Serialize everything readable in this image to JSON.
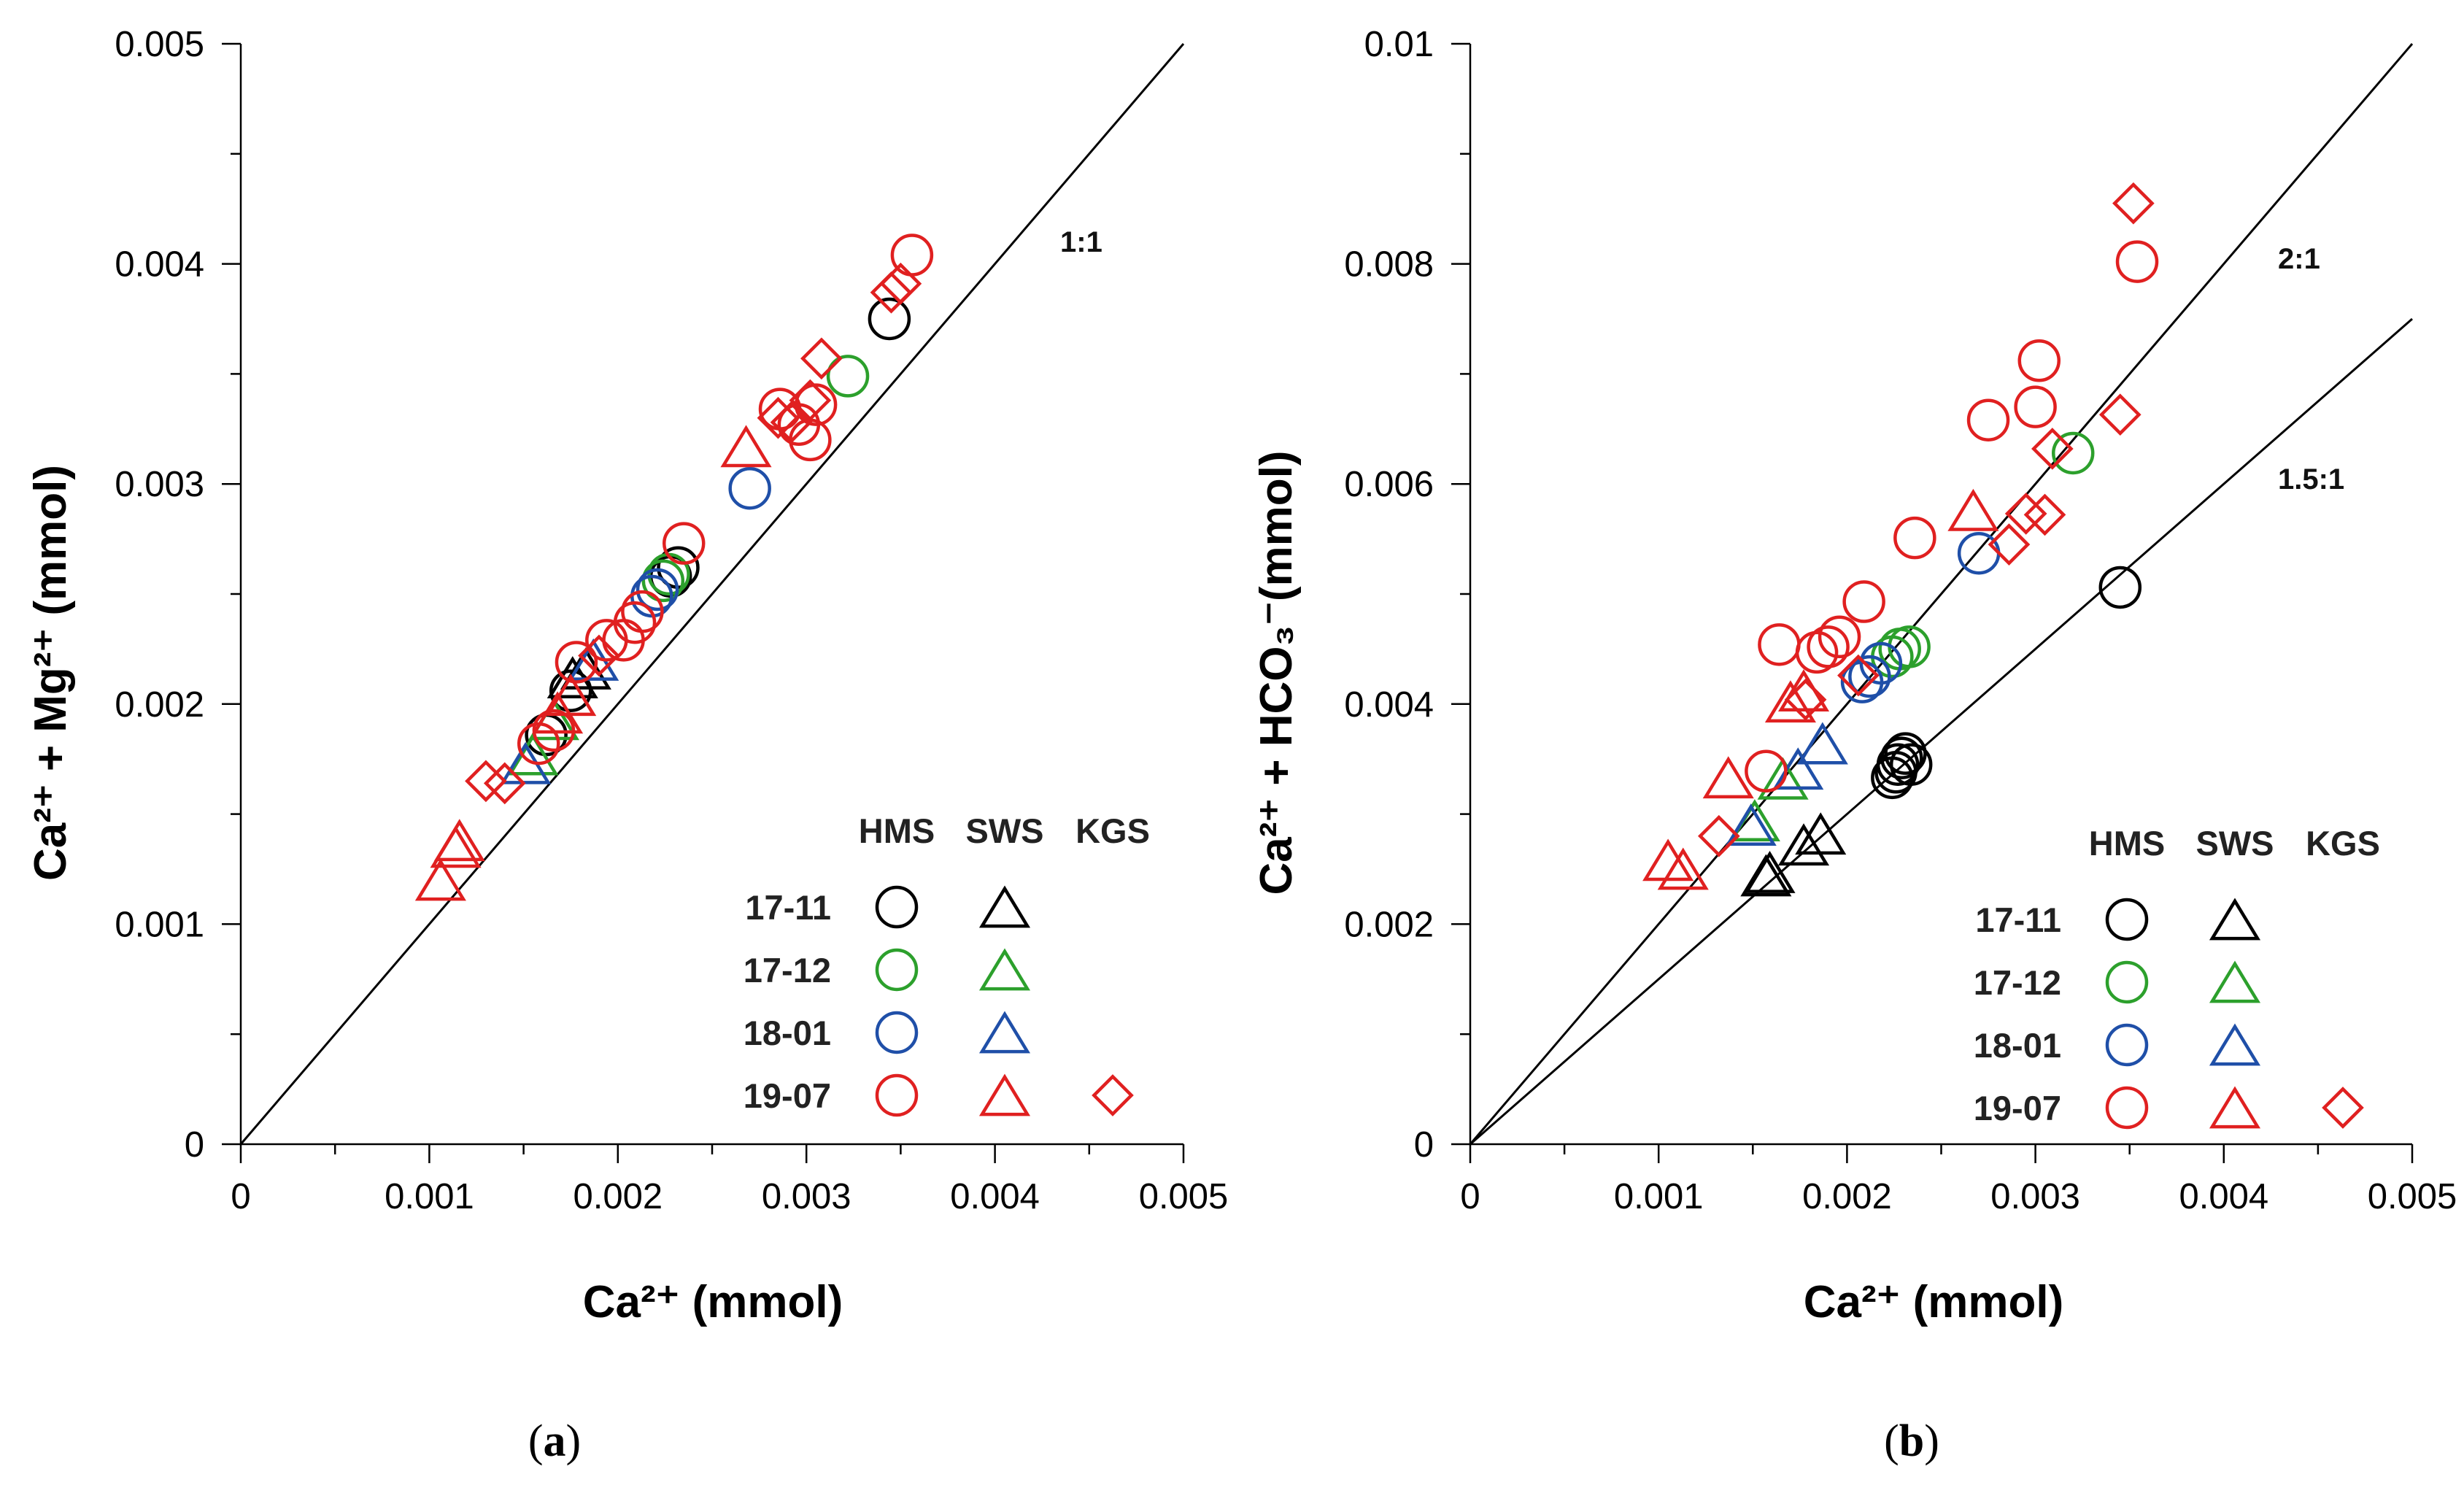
{
  "panels": {
    "a": {
      "label_open": "(",
      "label_letter": "a",
      "label_close": ")"
    },
    "b": {
      "label_open": "(",
      "label_letter": "b",
      "label_close": ")"
    }
  },
  "legend": {
    "headers": [
      "HMS",
      "SWS",
      "KGS"
    ],
    "rows": [
      "17-11",
      "17-12",
      "18-01",
      "19-07"
    ]
  },
  "chart_data": [
    {
      "type": "scatter",
      "panel": "a",
      "title": "",
      "xlabel": "Ca²⁺ (mmol)",
      "ylabel": "Ca²⁺ + Mg²⁺ (mmol)",
      "xlim": [
        0,
        0.005
      ],
      "ylim": [
        0,
        0.005
      ],
      "xticks": [
        "0",
        "0.001",
        "0.002",
        "0.003",
        "0.004",
        "0.005"
      ],
      "yticks": [
        "0",
        "0.001",
        "0.002",
        "0.003",
        "0.004",
        "0.005"
      ],
      "reference_lines": [
        {
          "label": "1:1",
          "slope": 1
        }
      ],
      "legend_position": "bottom-right",
      "grid": false,
      "series": [
        {
          "name": "17-11",
          "site": "HMS",
          "marker": "circle",
          "color": "#000000",
          "points": [
            [
              0.00162,
              0.00186
            ],
            [
              0.00175,
              0.00206
            ],
            [
              0.00228,
              0.00258
            ],
            [
              0.00232,
              0.00262
            ],
            [
              0.00344,
              0.00375
            ]
          ]
        },
        {
          "name": "17-11",
          "site": "SWS",
          "marker": "triangle",
          "color": "#000000",
          "points": [
            [
              0.00176,
              0.00211
            ],
            [
              0.00183,
              0.00215
            ]
          ]
        },
        {
          "name": "17-12",
          "site": "HMS",
          "marker": "circle",
          "color": "#2ca02c",
          "points": [
            [
              0.00224,
              0.00256
            ],
            [
              0.00227,
              0.00259
            ],
            [
              0.00322,
              0.00349
            ]
          ]
        },
        {
          "name": "17-12",
          "site": "SWS",
          "marker": "triangle",
          "color": "#2ca02c",
          "points": [
            [
              0.00155,
              0.00176
            ],
            [
              0.00166,
              0.00192
            ]
          ]
        },
        {
          "name": "18-01",
          "site": "HMS",
          "marker": "circle",
          "color": "#1f4fa8",
          "points": [
            [
              0.00218,
              0.00249
            ],
            [
              0.00221,
              0.00252
            ],
            [
              0.0027,
              0.00298
            ]
          ]
        },
        {
          "name": "18-01",
          "site": "SWS",
          "marker": "triangle",
          "color": "#1f4fa8",
          "points": [
            [
              0.00151,
              0.00172
            ],
            [
              0.00187,
              0.00219
            ]
          ]
        },
        {
          "name": "19-07",
          "site": "HMS",
          "marker": "circle",
          "color": "#e02020",
          "points": [
            [
              0.00158,
              0.00182
            ],
            [
              0.00166,
              0.00188
            ],
            [
              0.00178,
              0.00219
            ],
            [
              0.00194,
              0.00229
            ],
            [
              0.00203,
              0.00229
            ],
            [
              0.00209,
              0.00237
            ],
            [
              0.00213,
              0.00242
            ],
            [
              0.00235,
              0.00273
            ],
            [
              0.00286,
              0.00334
            ],
            [
              0.00296,
              0.00327
            ],
            [
              0.00302,
              0.0032
            ],
            [
              0.00305,
              0.00336
            ],
            [
              0.00356,
              0.00404
            ]
          ]
        },
        {
          "name": "19-07",
          "site": "SWS",
          "marker": "triangle",
          "color": "#e02020",
          "points": [
            [
              0.00106,
              0.00119
            ],
            [
              0.00114,
              0.00134
            ],
            [
              0.00116,
              0.00137
            ],
            [
              0.00168,
              0.00195
            ],
            [
              0.00175,
              0.00203
            ],
            [
              0.00268,
              0.00316
            ]
          ]
        },
        {
          "name": "19-07",
          "site": "KGS",
          "marker": "diamond",
          "color": "#e02020",
          "points": [
            [
              0.0013,
              0.00165
            ],
            [
              0.0014,
              0.00164
            ],
            [
              0.0019,
              0.00222
            ],
            [
              0.00285,
              0.0033
            ],
            [
              0.00292,
              0.00328
            ],
            [
              0.00302,
              0.00338
            ],
            [
              0.00308,
              0.00357
            ],
            [
              0.00345,
              0.00387
            ],
            [
              0.0035,
              0.00391
            ]
          ]
        }
      ]
    },
    {
      "type": "scatter",
      "panel": "b",
      "title": "",
      "xlabel": "Ca²⁺ (mmol)",
      "ylabel": "Ca²⁺ + HCO₃⁻(mmol)",
      "xlim": [
        0,
        0.005
      ],
      "ylim": [
        0,
        0.01
      ],
      "xticks": [
        "0",
        "0.001",
        "0.002",
        "0.003",
        "0.004",
        "0.005"
      ],
      "yticks": [
        "0",
        "0.002",
        "0.004",
        "0.006",
        "0.008",
        "0.01"
      ],
      "reference_lines": [
        {
          "label": "2:1",
          "slope": 2
        },
        {
          "label": "1.5:1",
          "slope": 1.5
        }
      ],
      "legend_position": "bottom-right",
      "grid": false,
      "series": [
        {
          "name": "17-11",
          "site": "HMS",
          "marker": "circle",
          "color": "#000000",
          "points": [
            [
              0.00224,
              0.00333
            ],
            [
              0.00226,
              0.00338
            ],
            [
              0.00227,
              0.00345
            ],
            [
              0.00229,
              0.00351
            ],
            [
              0.00231,
              0.00355
            ],
            [
              0.00234,
              0.00345
            ],
            [
              0.00345,
              0.00506
            ]
          ]
        },
        {
          "name": "17-11",
          "site": "SWS",
          "marker": "triangle",
          "color": "#000000",
          "points": [
            [
              0.00157,
              0.00242
            ],
            [
              0.00159,
              0.00245
            ],
            [
              0.00177,
              0.0027
            ],
            [
              0.00186,
              0.0028
            ]
          ]
        },
        {
          "name": "17-12",
          "site": "HMS",
          "marker": "circle",
          "color": "#2ca02c",
          "points": [
            [
              0.00224,
              0.00443
            ],
            [
              0.00228,
              0.0045
            ],
            [
              0.00233,
              0.00452
            ],
            [
              0.0032,
              0.00628
            ]
          ]
        },
        {
          "name": "17-12",
          "site": "SWS",
          "marker": "triangle",
          "color": "#2ca02c",
          "points": [
            [
              0.00151,
              0.00292
            ],
            [
              0.00166,
              0.0033
            ]
          ]
        },
        {
          "name": "18-01",
          "site": "HMS",
          "marker": "circle",
          "color": "#1f4fa8",
          "points": [
            [
              0.00208,
              0.0042
            ],
            [
              0.00212,
              0.00425
            ],
            [
              0.00218,
              0.00437
            ],
            [
              0.0027,
              0.00537
            ]
          ]
        },
        {
          "name": "18-01",
          "site": "SWS",
          "marker": "triangle",
          "color": "#1f4fa8",
          "points": [
            [
              0.00149,
              0.00288
            ],
            [
              0.00174,
              0.00339
            ],
            [
              0.00187,
              0.00362
            ]
          ]
        },
        {
          "name": "19-07",
          "site": "HMS",
          "marker": "circle",
          "color": "#e02020",
          "points": [
            [
              0.00157,
              0.00339
            ],
            [
              0.00164,
              0.00454
            ],
            [
              0.00184,
              0.00447
            ],
            [
              0.0019,
              0.00452
            ],
            [
              0.00196,
              0.00461
            ],
            [
              0.00209,
              0.00493
            ],
            [
              0.00236,
              0.00551
            ],
            [
              0.00275,
              0.00658
            ],
            [
              0.003,
              0.0067
            ],
            [
              0.00302,
              0.00712
            ],
            [
              0.00354,
              0.00802
            ]
          ]
        },
        {
          "name": "19-07",
          "site": "SWS",
          "marker": "triangle",
          "color": "#e02020",
          "points": [
            [
              0.00105,
              0.00256
            ],
            [
              0.00113,
              0.00248
            ],
            [
              0.00137,
              0.00331
            ],
            [
              0.0017,
              0.004
            ],
            [
              0.00177,
              0.0041
            ],
            [
              0.00267,
              0.00574
            ]
          ]
        },
        {
          "name": "19-07",
          "site": "KGS",
          "marker": "diamond",
          "color": "#e02020",
          "points": [
            [
              0.00132,
              0.0028
            ],
            [
              0.00178,
              0.00404
            ],
            [
              0.00206,
              0.00426
            ],
            [
              0.00286,
              0.00545
            ],
            [
              0.00295,
              0.00573
            ],
            [
              0.00305,
              0.00572
            ],
            [
              0.00309,
              0.00632
            ],
            [
              0.00345,
              0.00663
            ],
            [
              0.00352,
              0.00855
            ]
          ]
        }
      ]
    }
  ]
}
